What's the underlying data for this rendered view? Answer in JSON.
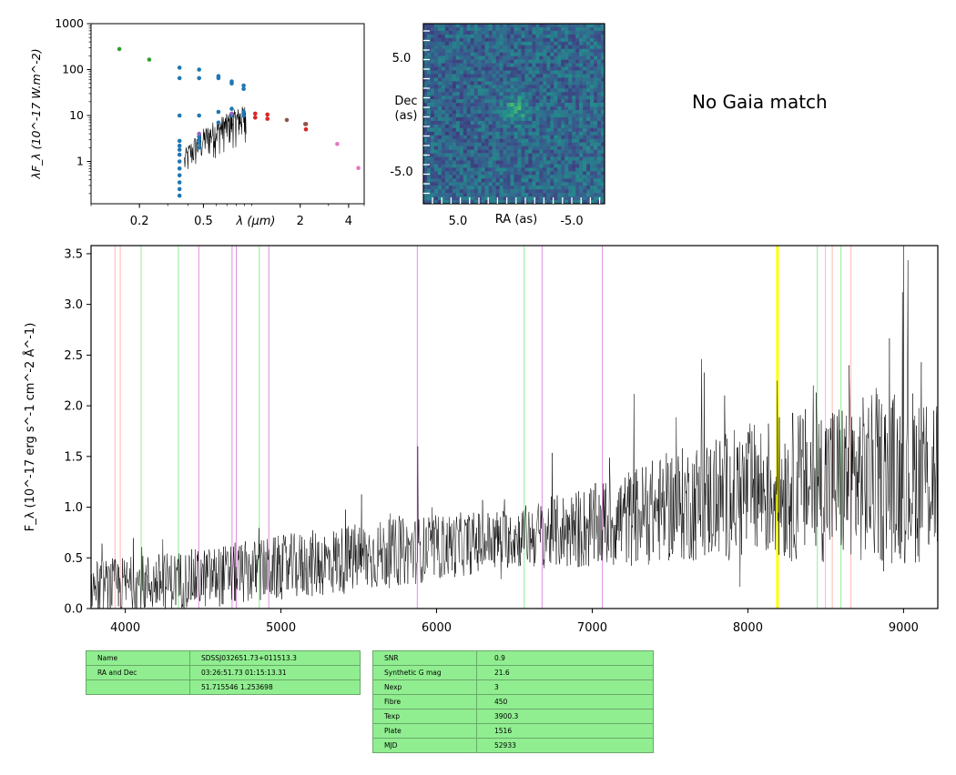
{
  "chart_data": [
    {
      "type": "scatter",
      "panel": "sed",
      "title": "",
      "xlabel": "λ (μm)",
      "ylabel": "λF_λ (10^-17 W.m^-2)",
      "xscale": "log",
      "yscale": "log",
      "xlim": [
        0.1,
        5.0
      ],
      "ylim": [
        0.12,
        1000
      ],
      "xticks": [
        {
          "v": 0.2,
          "label": "0.2"
        },
        {
          "v": 0.5,
          "label": "0.5"
        },
        {
          "v": 2,
          "label": "2"
        },
        {
          "v": 4,
          "label": "4"
        }
      ],
      "yticks": [
        {
          "v": 1,
          "label": "1"
        },
        {
          "v": 10,
          "label": "10"
        },
        {
          "v": 100,
          "label": "100"
        },
        {
          "v": 1000,
          "label": "1000"
        }
      ],
      "series": [
        {
          "color": "#2ca02c",
          "points": [
            [
              0.15,
              280
            ],
            [
              0.23,
              165
            ]
          ]
        },
        {
          "color": "#1f77b4",
          "points": [
            [
              0.355,
              110
            ],
            [
              0.355,
              65
            ],
            [
              0.355,
              10
            ],
            [
              0.355,
              2.8
            ],
            [
              0.355,
              2.2
            ],
            [
              0.355,
              1.8
            ],
            [
              0.355,
              1.4
            ],
            [
              0.355,
              1.0
            ],
            [
              0.355,
              0.7
            ],
            [
              0.355,
              0.5
            ],
            [
              0.355,
              0.35
            ],
            [
              0.355,
              0.25
            ],
            [
              0.355,
              0.18
            ],
            [
              0.47,
              100
            ],
            [
              0.47,
              65
            ],
            [
              0.47,
              10
            ],
            [
              0.47,
              3.5
            ],
            [
              0.47,
              3.0
            ],
            [
              0.47,
              2.5
            ],
            [
              0.47,
              2.0
            ],
            [
              0.62,
              72
            ],
            [
              0.62,
              65
            ],
            [
              0.62,
              12
            ],
            [
              0.62,
              7
            ],
            [
              0.75,
              55
            ],
            [
              0.75,
              50
            ],
            [
              0.75,
              14
            ],
            [
              0.75,
              10
            ],
            [
              0.89,
              45
            ],
            [
              0.89,
              38
            ],
            [
              0.89,
              12
            ],
            [
              0.89,
              10
            ]
          ]
        },
        {
          "color": "#9467bd",
          "points": [
            [
              0.47,
              4.0
            ],
            [
              0.75,
              11
            ]
          ]
        },
        {
          "color": "#d62728",
          "points": [
            [
              1.05,
              11
            ],
            [
              1.05,
              9
            ],
            [
              1.25,
              10.5
            ],
            [
              1.25,
              8.5
            ],
            [
              2.17,
              6.5
            ],
            [
              2.17,
              5.0
            ]
          ]
        },
        {
          "color": "#8c564b",
          "points": [
            [
              1.65,
              8.0
            ],
            [
              2.15,
              6.5
            ]
          ]
        },
        {
          "color": "#e377c2",
          "points": [
            [
              3.4,
              2.4
            ],
            [
              4.6,
              0.72
            ]
          ]
        }
      ]
    },
    {
      "type": "heatmap",
      "panel": "image",
      "xlabel": "RA (as)",
      "ylabel": "Dec\n(as)",
      "xticks": [
        "5.0",
        "-5.0"
      ],
      "yticks": [
        "5.0",
        "-5.0"
      ],
      "colormap": "viridis"
    },
    {
      "type": "line",
      "panel": "spectrum",
      "title": "",
      "xlabel": "",
      "ylabel": "F_λ (10^-17 erg s^-1 cm^-2 Å^-1)",
      "xlim": [
        3780,
        9220
      ],
      "ylim": [
        0,
        3.58
      ],
      "xticks": [
        4000,
        5000,
        6000,
        7000,
        8000,
        9000
      ],
      "yticks": [
        {
          "v": 0.0,
          "label": "0.0"
        },
        {
          "v": 0.5,
          "label": "0.5"
        },
        {
          "v": 1.0,
          "label": "1.0"
        },
        {
          "v": 1.5,
          "label": "1.5"
        },
        {
          "v": 2.0,
          "label": "2.0"
        },
        {
          "v": 2.5,
          "label": "2.5"
        },
        {
          "v": 3.0,
          "label": "3.0"
        },
        {
          "v": 3.5,
          "label": "3.5"
        }
      ],
      "line_color": "#000000",
      "trend": [
        [
          3800,
          0.2
        ],
        [
          4500,
          0.3
        ],
        [
          5000,
          0.4
        ],
        [
          5500,
          0.5
        ],
        [
          6000,
          0.6
        ],
        [
          6500,
          0.7
        ],
        [
          7000,
          0.8
        ],
        [
          7500,
          1.0
        ],
        [
          8000,
          1.15
        ],
        [
          8500,
          1.25
        ],
        [
          9000,
          1.3
        ],
        [
          9220,
          1.35
        ]
      ],
      "noise": [
        [
          3800,
          0.28
        ],
        [
          4500,
          0.3
        ],
        [
          5500,
          0.35
        ],
        [
          6500,
          0.3
        ],
        [
          7500,
          0.55
        ],
        [
          8500,
          0.8
        ],
        [
          9220,
          0.9
        ]
      ],
      "peaks": [
        [
          5880,
          1.6
        ],
        [
          7850,
          2.1
        ],
        [
          8420,
          2.2
        ],
        [
          8650,
          2.4
        ],
        [
          9000,
          3.58
        ],
        [
          9220,
          2.2
        ]
      ],
      "lines": [
        {
          "x": 3934,
          "color": "#ffb6b6"
        },
        {
          "x": 3968,
          "color": "#ffb6b6"
        },
        {
          "x": 4102,
          "color": "#90ee90"
        },
        {
          "x": 4341,
          "color": "#90ee90"
        },
        {
          "x": 4472,
          "color": "#e08ee0"
        },
        {
          "x": 4686,
          "color": "#e08ee0"
        },
        {
          "x": 4713,
          "color": "#e08ee0"
        },
        {
          "x": 4861,
          "color": "#90ee90"
        },
        {
          "x": 4922,
          "color": "#e08ee0"
        },
        {
          "x": 5876,
          "color": "#e08ee0"
        },
        {
          "x": 6563,
          "color": "#90ee90"
        },
        {
          "x": 6678,
          "color": "#e08ee0"
        },
        {
          "x": 7065,
          "color": "#e08ee0"
        },
        {
          "x": 8190,
          "color": "#ffff00",
          "width": 3
        },
        {
          "x": 8446,
          "color": "#90ee90"
        },
        {
          "x": 8498,
          "color": "#ffb6b6"
        },
        {
          "x": 8542,
          "color": "#ffb6b6"
        },
        {
          "x": 8598,
          "color": "#90ee90"
        },
        {
          "x": 8662,
          "color": "#ffb6b6"
        }
      ]
    }
  ],
  "gaia_text": "No Gaia match",
  "meta_table": [
    {
      "k": "Name",
      "v": "SDSSJ032651.73+011513.3"
    },
    {
      "k": "RA and Dec",
      "v": "03:26:51.73    01:15:13.31"
    },
    {
      "k": "",
      "v": "51.715546    1.253698"
    }
  ],
  "obs_table": [
    {
      "k": "SNR",
      "v": "0.9"
    },
    {
      "k": "Synthetic G mag",
      "v": "21.6"
    },
    {
      "k": "Nexp",
      "v": "3"
    },
    {
      "k": "Fibre",
      "v": "450"
    },
    {
      "k": "Texp",
      "v": "3900.3"
    },
    {
      "k": "Plate",
      "v": "1516"
    },
    {
      "k": "MJD",
      "v": "52933"
    }
  ]
}
